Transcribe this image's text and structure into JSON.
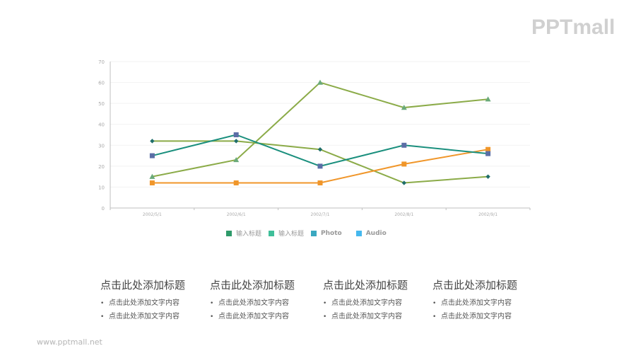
{
  "logo": {
    "text": "PPTmall"
  },
  "footer": {
    "url_text": "www.pptmall.net"
  },
  "chart_data": {
    "type": "line",
    "title": "",
    "xlabel": "",
    "ylabel": "",
    "categories": [
      "2002/5/1",
      "2002/6/1",
      "2002/7/1",
      "2002/8/1",
      "2002/9/1"
    ],
    "yticks": [
      0,
      10,
      20,
      30,
      40,
      50,
      60,
      70
    ],
    "ylim": [
      0,
      70
    ],
    "grid": true,
    "legend_position": "bottom",
    "series": [
      {
        "name": "输入标题",
        "color": "#8bab48",
        "marker": "diamond",
        "marker_color": "#1f6e6a",
        "values": [
          32,
          32,
          28,
          12,
          15
        ]
      },
      {
        "name": "输入标题",
        "color": "#1a8f7d",
        "marker": "square",
        "marker_color": "#5b6ea6",
        "values": [
          25,
          35,
          20,
          30,
          26
        ]
      },
      {
        "name": "Photo",
        "color": "#8bab48",
        "marker": "triangle",
        "marker_color": "#6aaa7a",
        "values": [
          15,
          23,
          60,
          48,
          52
        ]
      },
      {
        "name": "Audio",
        "color": "#f0962a",
        "marker": "square",
        "marker_color": "#f0962a",
        "values": [
          12,
          12,
          12,
          21,
          28
        ]
      }
    ],
    "legend": [
      {
        "label": "输入标题",
        "color": "#2e9a6a"
      },
      {
        "label": "输入标题",
        "color": "#3fbf9a"
      },
      {
        "label": "Photo",
        "color": "#3aa8c0"
      },
      {
        "label": "Audio",
        "color": "#45b8ee"
      }
    ]
  },
  "columns": [
    {
      "title": "点击此处添加标题",
      "bullets": [
        "点击此处添加文字内容",
        "点击此处添加文字内容"
      ]
    },
    {
      "title": "点击此处添加标题",
      "bullets": [
        "点击此处添加文字内容",
        "点击此处添加文字内容"
      ]
    },
    {
      "title": "点击此处添加标题",
      "bullets": [
        "点击此处添加文字内容",
        "点击此处添加文字内容"
      ]
    },
    {
      "title": "点击此处添加标题",
      "bullets": [
        "点击此处添加文字内容",
        "点击此处添加文字内容"
      ]
    }
  ],
  "bullet_glyph": "•"
}
